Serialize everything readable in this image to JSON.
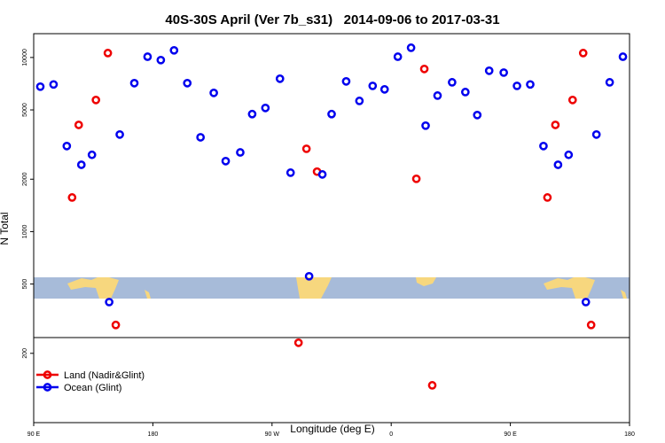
{
  "chart_data": {
    "type": "scatter",
    "title": "40S-30S April (Ver 7b_s31)   2014-09-06 to 2017-03-31",
    "xlabel": "Longitude (deg E)",
    "ylabel": "N Total",
    "log_y": true,
    "legend": "lower left",
    "xlim": [
      90,
      540
    ],
    "xticks": [
      {
        "value": 90,
        "label": "90 E"
      },
      180,
      {
        "value": 270,
        "label": "90 W"
      },
      {
        "value": 360,
        "label": "0"
      },
      {
        "value": 450,
        "label": "90 E"
      },
      {
        "value": 540,
        "label": "180"
      }
    ],
    "ylim": [
      80,
      13700
    ],
    "yticks": [
      200,
      500,
      1000,
      2000,
      5000,
      10000
    ],
    "series": [
      {
        "name": "Land (Nadir&Glint)",
        "color": "#ee0000",
        "x": [
          119,
          124,
          137,
          146,
          152,
          290,
          296,
          304,
          379,
          385,
          391,
          478,
          484,
          497,
          505,
          511
        ],
        "values": [
          1570,
          4100,
          5700,
          10600,
          291,
          230,
          2990,
          2210,
          2010,
          8590,
          131,
          1570,
          4100,
          5700,
          10600,
          291
        ]
      },
      {
        "name": "Ocean (Glint)",
        "color": "#0000ee",
        "x": [
          95,
          105,
          115,
          126,
          134,
          147,
          155,
          166,
          176,
          186,
          196,
          206,
          216,
          226,
          235,
          246,
          255,
          265,
          276,
          284,
          298,
          308,
          315,
          326,
          336,
          346,
          355,
          365,
          375,
          386,
          395,
          406,
          416,
          425,
          434,
          445,
          455,
          465,
          475,
          486,
          494,
          507,
          515,
          525,
          535
        ],
        "values": [
          6800,
          7000,
          3100,
          2420,
          2760,
          394,
          3610,
          7120,
          10100,
          9660,
          10990,
          7120,
          3480,
          6260,
          2540,
          2850,
          4730,
          5130,
          7550,
          2180,
          554,
          2130,
          4730,
          7290,
          5630,
          6870,
          6560,
          10100,
          11370,
          4060,
          6040,
          7200,
          6330,
          4670,
          8390,
          8190,
          6870,
          7000,
          3100,
          2420,
          2760,
          394,
          3610,
          7200,
          10100
        ]
      }
    ]
  }
}
